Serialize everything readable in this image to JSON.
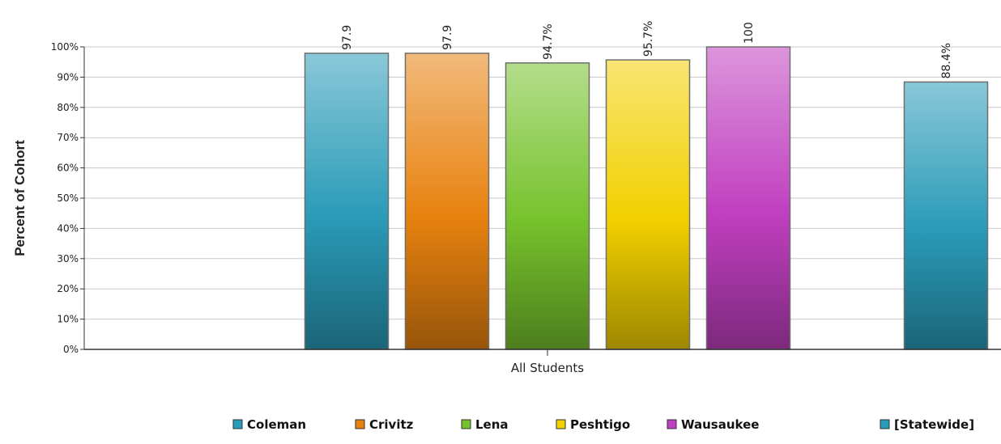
{
  "chart_data": {
    "type": "bar",
    "title": "",
    "ylabel": "Percent of Cohort",
    "categories": [
      "All Students"
    ],
    "ylim": [
      0,
      100
    ],
    "y_ticks": [
      "0%",
      "10%",
      "20%",
      "30%",
      "40%",
      "50%",
      "60%",
      "70%",
      "80%",
      "90%",
      "100%"
    ],
    "grid": true,
    "legend_position": "bottom",
    "series": [
      {
        "name": "Coleman",
        "values": [
          97.9
        ],
        "label": "97.9",
        "color": "#2a9bb8"
      },
      {
        "name": "Crivitz",
        "values": [
          97.9
        ],
        "label": "97.9",
        "color": "#e8820f"
      },
      {
        "name": "Lena",
        "values": [
          94.7
        ],
        "label": "94.7%",
        "color": "#76c22c"
      },
      {
        "name": "Peshtigo",
        "values": [
          95.7
        ],
        "label": "95.7%",
        "color": "#f2d000"
      },
      {
        "name": "Wausaukee",
        "values": [
          100
        ],
        "label": "100",
        "color": "#c03fc0"
      },
      {
        "name": "[Statewide]",
        "values": [
          88.4
        ],
        "label": "88.4%",
        "color": "#2a9bb8"
      }
    ]
  }
}
